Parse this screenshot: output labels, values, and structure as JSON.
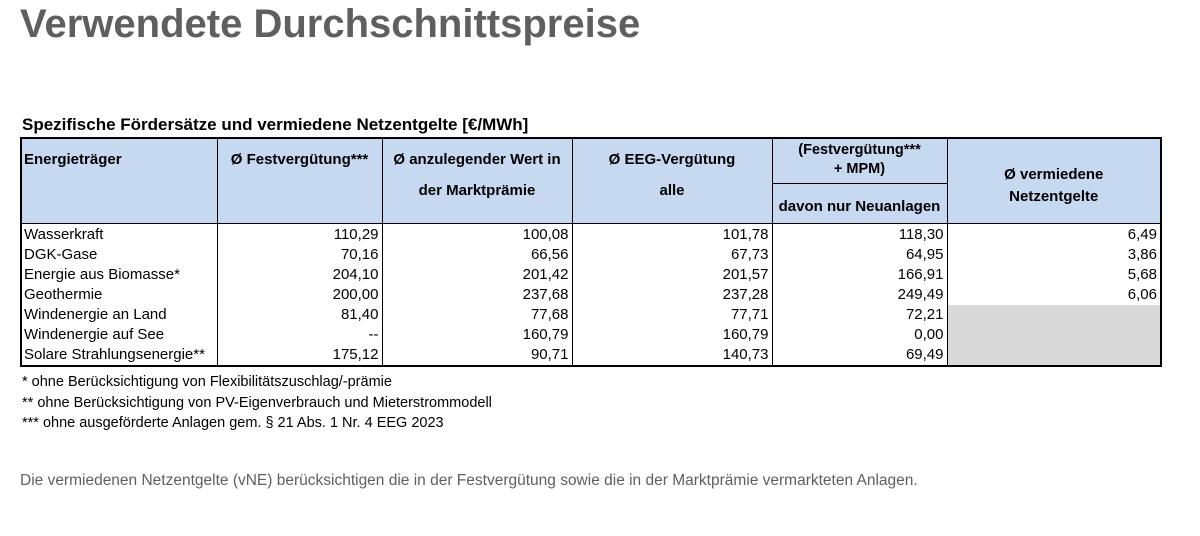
{
  "title": "Verwendete Durchschnittspreise",
  "table": {
    "caption": "Spezifische Fördersätze und vermiedene Netzentgelte [€/MWh]",
    "header": {
      "energy": "Energieträger",
      "feed_in": "Ø Festvergütung***",
      "market_premium": [
        "Ø anzulegender Wert in",
        "der Marktprämie"
      ],
      "eeg": [
        "Ø EEG-Vergütung",
        "alle"
      ],
      "eeg_group": "(Festvergütung*** + MPM)",
      "eeg_new": "davon nur Neuanlagen",
      "avoided": "Ø vermiedene Netzentgelte"
    },
    "rows": [
      [
        "Wasserkraft",
        "110,29",
        "100,08",
        "101,78",
        "118,30",
        "6,49"
      ],
      [
        "DGK-Gase",
        "70,16",
        "66,56",
        "67,73",
        "64,95",
        "3,86"
      ],
      [
        "Energie aus Biomasse*",
        "204,10",
        "201,42",
        "201,57",
        "166,91",
        "5,68"
      ],
      [
        "Geothermie",
        "200,00",
        "237,68",
        "237,28",
        "249,49",
        "6,06"
      ],
      [
        "Windenergie an Land",
        "81,40",
        "77,68",
        "77,71",
        "72,21",
        null
      ],
      [
        "Windenergie auf See",
        "--",
        "160,79",
        "160,79",
        "0,00",
        null
      ],
      [
        "Solare Strahlungsenergie**",
        "175,12",
        "90,71",
        "140,73",
        "69,49",
        null
      ]
    ]
  },
  "footnotes": [
    "* ohne Berücksichtigung von Flexibilitätszuschlag/-prämie",
    "** ohne Berücksichtigung von PV-Eigenverbrauch und Mieterstrommodell",
    "*** ohne ausgeförderte Anlagen gem. § 21 Abs. 1 Nr. 4 EEG 2023"
  ],
  "note": "Die vermiedenen Netzentgelte (vNE) berücksichtigen die in der Festvergütung sowie die in der Marktprämie vermarkteten Anlagen."
}
